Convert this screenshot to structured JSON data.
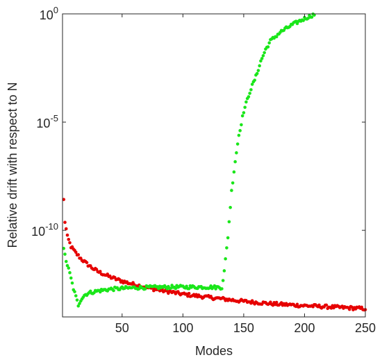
{
  "chart_data": {
    "type": "scatter",
    "title": "",
    "xlabel": "Modes",
    "ylabel": "Relative drift with respect to N",
    "xlim": [
      1,
      250
    ],
    "ylim": [
      1e-14,
      1
    ],
    "yscale": "log",
    "grid": false,
    "legend": "none",
    "x_ticks": [
      {
        "value": 50,
        "label": "50"
      },
      {
        "value": 100,
        "label": "100"
      },
      {
        "value": 150,
        "label": "150"
      },
      {
        "value": 200,
        "label": "200"
      },
      {
        "value": 250,
        "label": "250"
      }
    ],
    "y_ticks": [
      {
        "value": 1e-10,
        "base": "10",
        "exp": "-10"
      },
      {
        "value": 1e-05,
        "base": "10",
        "exp": "-5"
      },
      {
        "value": 1,
        "base": "10",
        "exp": "0"
      }
    ],
    "series": [
      {
        "color": "#e60000",
        "description": "red series, 1 point per mode",
        "x_start": 2,
        "x_end": 250,
        "log10_knots": [
          [
            2,
            -8.6
          ],
          [
            3,
            -9.6
          ],
          [
            5,
            -10.3
          ],
          [
            8,
            -10.75
          ],
          [
            12,
            -11.05
          ],
          [
            16,
            -11.3
          ],
          [
            20,
            -11.5
          ],
          [
            25,
            -11.72
          ],
          [
            30,
            -11.9
          ],
          [
            40,
            -12.15
          ],
          [
            50,
            -12.35
          ],
          [
            60,
            -12.5
          ],
          [
            75,
            -12.7
          ],
          [
            100,
            -12.95
          ],
          [
            125,
            -13.12
          ],
          [
            150,
            -13.28
          ],
          [
            175,
            -13.4
          ],
          [
            200,
            -13.48
          ],
          [
            225,
            -13.55
          ],
          [
            250,
            -13.62
          ]
        ]
      },
      {
        "color": "#1ae61a",
        "description": "green series, 1 point per mode",
        "x_start": 2,
        "x_end": 209,
        "log10_knots": [
          [
            2,
            -10.9
          ],
          [
            4,
            -11.4
          ],
          [
            7,
            -12.0
          ],
          [
            10,
            -12.7
          ],
          [
            14,
            -13.45
          ],
          [
            16,
            -13.2
          ],
          [
            19,
            -13.0
          ],
          [
            22,
            -12.9
          ],
          [
            26,
            -12.85
          ],
          [
            30,
            -12.8
          ],
          [
            40,
            -12.72
          ],
          [
            60,
            -12.65
          ],
          [
            90,
            -12.62
          ],
          [
            120,
            -12.62
          ],
          [
            132,
            -12.64
          ],
          [
            134,
            -11.9
          ],
          [
            137,
            -10.3
          ],
          [
            140,
            -8.2
          ],
          [
            143,
            -6.8
          ],
          [
            146,
            -5.6
          ],
          [
            150,
            -4.5
          ],
          [
            155,
            -3.6
          ],
          [
            160,
            -2.9
          ],
          [
            164,
            -2.2
          ],
          [
            168,
            -1.65
          ],
          [
            172,
            -1.25
          ],
          [
            180,
            -0.85
          ],
          [
            190,
            -0.5
          ],
          [
            200,
            -0.22
          ],
          [
            209,
            0.0
          ]
        ]
      }
    ]
  }
}
